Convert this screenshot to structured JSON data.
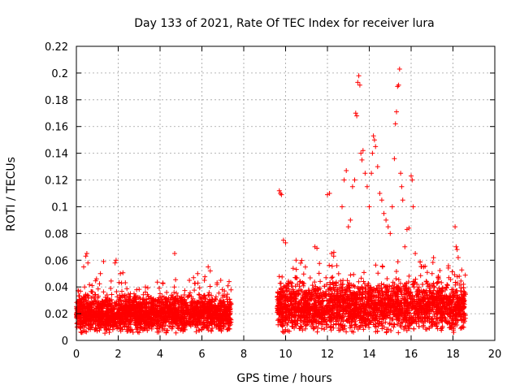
{
  "chart_data": {
    "type": "scatter",
    "title": "Day 133 of 2021, Rate Of TEC Index for receiver lura",
    "xlabel": "GPS time / hours",
    "ylabel": "ROTI / TECUs",
    "xlim": [
      0,
      20
    ],
    "ylim": [
      0,
      0.22
    ],
    "xticks": [
      0,
      2,
      4,
      6,
      8,
      10,
      12,
      14,
      16,
      18,
      20
    ],
    "yticks": [
      0,
      0.02,
      0.04,
      0.06,
      0.08,
      0.1,
      0.12,
      0.14,
      0.16,
      0.18,
      0.2,
      0.22
    ],
    "xtick_labels": [
      "0",
      "2",
      "4",
      "6",
      "8",
      "10",
      "12",
      "14",
      "16",
      "18",
      "20"
    ],
    "ytick_labels": [
      "0",
      "0.02",
      "0.04",
      "0.06",
      "0.08",
      "0.1",
      "0.12",
      "0.14",
      "0.16",
      "0.18",
      "0.2",
      "0.22"
    ],
    "grid": true,
    "marker": "+",
    "color": "#ff0000",
    "segments": [
      {
        "x_range": [
          0,
          7.4
        ],
        "y_base": [
          0.005,
          0.035
        ],
        "y_max": 0.065
      },
      {
        "x_range": [
          9.6,
          18.6
        ],
        "y_base": [
          0.005,
          0.045
        ],
        "y_max": 0.203
      }
    ],
    "outliers": [
      [
        0.1,
        0.037
      ],
      [
        0.35,
        0.055
      ],
      [
        0.45,
        0.063
      ],
      [
        0.5,
        0.065
      ],
      [
        0.55,
        0.058
      ],
      [
        1.15,
        0.05
      ],
      [
        1.3,
        0.059
      ],
      [
        1.85,
        0.058
      ],
      [
        1.9,
        0.06
      ],
      [
        2.1,
        0.05
      ],
      [
        3.3,
        0.04
      ],
      [
        4.0,
        0.035
      ],
      [
        4.7,
        0.065
      ],
      [
        5.4,
        0.045
      ],
      [
        5.6,
        0.047
      ],
      [
        5.8,
        0.05
      ],
      [
        6.3,
        0.055
      ],
      [
        6.4,
        0.052
      ],
      [
        6.9,
        0.045
      ],
      [
        7.3,
        0.044
      ],
      [
        9.7,
        0.112
      ],
      [
        9.75,
        0.11
      ],
      [
        9.8,
        0.109
      ],
      [
        9.9,
        0.075
      ],
      [
        10.0,
        0.073
      ],
      [
        10.5,
        0.06
      ],
      [
        11.4,
        0.07
      ],
      [
        11.5,
        0.069
      ],
      [
        12.0,
        0.109
      ],
      [
        12.1,
        0.11
      ],
      [
        12.2,
        0.065
      ],
      [
        12.3,
        0.063
      ],
      [
        12.7,
        0.1
      ],
      [
        12.8,
        0.12
      ],
      [
        12.9,
        0.127
      ],
      [
        13.0,
        0.085
      ],
      [
        13.1,
        0.09
      ],
      [
        13.2,
        0.115
      ],
      [
        13.3,
        0.12
      ],
      [
        13.35,
        0.17
      ],
      [
        13.4,
        0.168
      ],
      [
        13.45,
        0.193
      ],
      [
        13.5,
        0.198
      ],
      [
        13.55,
        0.191
      ],
      [
        13.6,
        0.14
      ],
      [
        13.65,
        0.135
      ],
      [
        13.7,
        0.142
      ],
      [
        13.8,
        0.125
      ],
      [
        13.9,
        0.115
      ],
      [
        14.0,
        0.1
      ],
      [
        14.1,
        0.125
      ],
      [
        14.15,
        0.14
      ],
      [
        14.2,
        0.153
      ],
      [
        14.25,
        0.15
      ],
      [
        14.3,
        0.145
      ],
      [
        14.4,
        0.13
      ],
      [
        14.5,
        0.11
      ],
      [
        14.6,
        0.105
      ],
      [
        14.7,
        0.095
      ],
      [
        14.8,
        0.09
      ],
      [
        14.9,
        0.085
      ],
      [
        15.0,
        0.08
      ],
      [
        15.1,
        0.1
      ],
      [
        15.2,
        0.136
      ],
      [
        15.25,
        0.162
      ],
      [
        15.3,
        0.171
      ],
      [
        15.35,
        0.19
      ],
      [
        15.4,
        0.191
      ],
      [
        15.45,
        0.203
      ],
      [
        15.5,
        0.125
      ],
      [
        15.55,
        0.115
      ],
      [
        15.6,
        0.105
      ],
      [
        15.7,
        0.07
      ],
      [
        15.8,
        0.083
      ],
      [
        15.9,
        0.084
      ],
      [
        16.0,
        0.123
      ],
      [
        16.05,
        0.12
      ],
      [
        16.1,
        0.1
      ],
      [
        16.2,
        0.065
      ],
      [
        16.6,
        0.055
      ],
      [
        17.0,
        0.05
      ],
      [
        17.3,
        0.048
      ],
      [
        17.8,
        0.047
      ],
      [
        18.1,
        0.085
      ],
      [
        18.15,
        0.07
      ],
      [
        18.2,
        0.068
      ],
      [
        18.25,
        0.062
      ],
      [
        18.3,
        0.048
      ],
      [
        18.5,
        0.042
      ]
    ]
  }
}
